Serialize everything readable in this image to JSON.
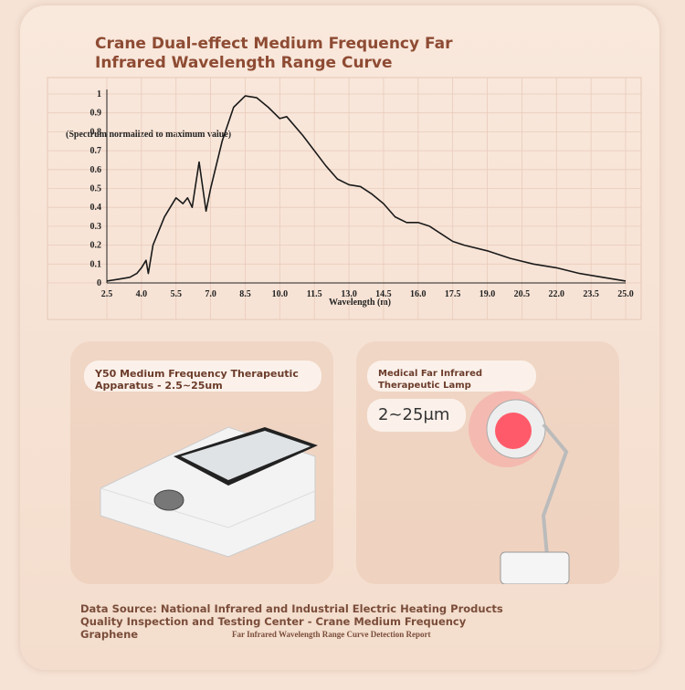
{
  "chart_data": {
    "type": "line",
    "title": "Crane Dual-effect Medium Frequency Far Infrared Wavelength Range Curve",
    "y_label": "(Spectrum normalized to maximum value)",
    "x_label": "Wavelength (m)",
    "x": [
      2.5,
      3.0,
      3.5,
      3.8,
      4.0,
      4.2,
      4.3,
      4.5,
      5.0,
      5.5,
      5.8,
      6.0,
      6.2,
      6.5,
      6.8,
      7.0,
      7.5,
      8.0,
      8.5,
      9.0,
      9.5,
      10.0,
      10.3,
      11.0,
      12.0,
      12.5,
      13.0,
      13.5,
      14.0,
      14.5,
      15.0,
      15.5,
      16.0,
      16.5,
      17.0,
      17.5,
      18.0,
      19.0,
      20.0,
      21.0,
      22.0,
      23.0,
      24.0,
      25.0
    ],
    "values": [
      0.01,
      0.02,
      0.03,
      0.05,
      0.08,
      0.12,
      0.05,
      0.2,
      0.35,
      0.45,
      0.42,
      0.45,
      0.4,
      0.64,
      0.38,
      0.5,
      0.75,
      0.93,
      0.99,
      0.98,
      0.93,
      0.87,
      0.88,
      0.78,
      0.62,
      0.55,
      0.52,
      0.51,
      0.47,
      0.42,
      0.35,
      0.32,
      0.32,
      0.3,
      0.26,
      0.22,
      0.2,
      0.17,
      0.13,
      0.1,
      0.08,
      0.05,
      0.03,
      0.01
    ],
    "color": "#1a1a1a",
    "xlim": [
      2.5,
      25
    ],
    "ylim": [
      0,
      1
    ],
    "xticks": [
      2.5,
      {
        "value": 4,
        "label": "4.0"
      },
      5.5,
      {
        "value": 7,
        "label": "7.0"
      },
      8.5,
      {
        "value": 10,
        "label": "10.0"
      },
      11.5,
      {
        "value": 13,
        "label": "13.0"
      },
      14.5,
      {
        "value": 16,
        "label": "16.0"
      },
      17.5,
      {
        "value": 19,
        "label": "19.0"
      },
      20.5,
      {
        "value": 22,
        "label": "22.0"
      },
      23.5,
      {
        "value": 25,
        "label": "25.0"
      }
    ],
    "yticks": [
      0,
      0.1,
      0.2,
      0.3,
      0.4,
      0.5,
      0.6,
      0.7,
      0.8,
      0.9,
      1
    ],
    "grid": true
  },
  "panels": [
    {
      "label": "Y50 Medium Frequency Therapeutic Apparatus - 2.5~25um"
    },
    {
      "label": "Medical Far Infrared Therapeutic Lamp",
      "badge": "2~25μm"
    }
  ],
  "footer": {
    "source": "Data Source: National Infrared and Industrial Electric Heating Products Quality Inspection and Testing Center - Crane Medium Frequency Graphene",
    "report": "Far Infrared Wavelength Range Curve Detection Report"
  }
}
